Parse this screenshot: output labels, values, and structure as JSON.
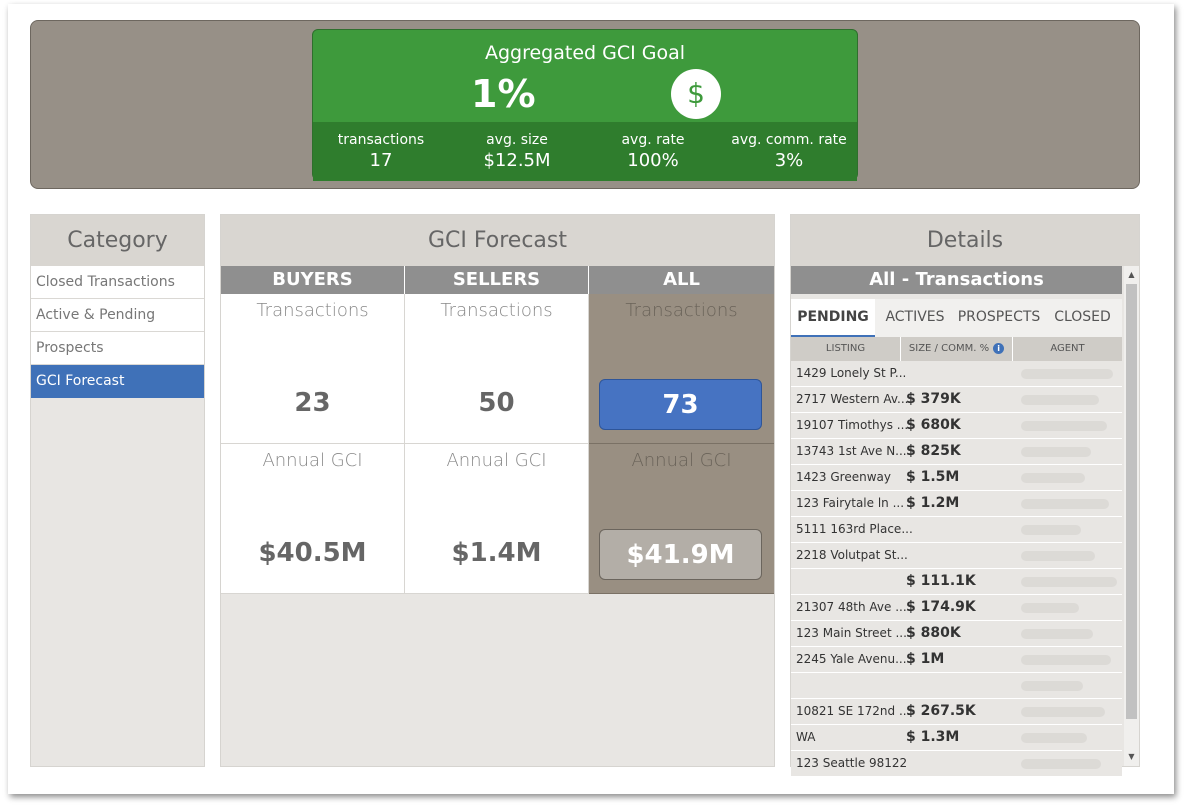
{
  "goal": {
    "title": "Aggregated GCI Goal",
    "percent": "1%",
    "icon": "dollar-icon",
    "icon_glyph": "$",
    "stats": [
      {
        "label": "transactions",
        "value": "17"
      },
      {
        "label": "avg. size",
        "value": "$12.5M"
      },
      {
        "label": "avg. rate",
        "value": "100%"
      },
      {
        "label": "avg. comm. rate",
        "value": "3%"
      }
    ]
  },
  "category": {
    "title": "Category",
    "items": [
      {
        "label": "Closed Transactions"
      },
      {
        "label": "Active & Pending"
      },
      {
        "label": "Prospects"
      },
      {
        "label": "GCI Forecast",
        "active": true
      }
    ]
  },
  "forecast": {
    "title": "GCI Forecast",
    "columns": [
      "BUYERS",
      "SELLERS",
      "ALL"
    ],
    "transactions": {
      "label": "Transactions",
      "buyers": "23",
      "sellers": "50",
      "all": "73"
    },
    "annual_gci": {
      "label": "Annual GCI",
      "buyers": "$40.5M",
      "sellers": "$1.4M",
      "all": "$41.9M"
    }
  },
  "details": {
    "title": "Details",
    "subtitle": "All - Transactions",
    "tabs": [
      "PENDING",
      "ACTIVES",
      "PROSPECTS",
      "CLOSED"
    ],
    "active_tab": "PENDING",
    "columns": [
      "LISTING",
      "SIZE / COMM. %",
      "AGENT"
    ],
    "rows": [
      {
        "listing": "1429 Lonely St P...",
        "size": ""
      },
      {
        "listing": "2717 Western Av...",
        "size": "$ 379K"
      },
      {
        "listing": "19107 Timothys ...",
        "size": "$ 680K"
      },
      {
        "listing": "13743 1st Ave N...",
        "size": "$ 825K"
      },
      {
        "listing": "1423 Greenway",
        "size": "$ 1.5M"
      },
      {
        "listing": "123 Fairytale ln ...",
        "size": "$ 1.2M"
      },
      {
        "listing": "5111 163rd Place...",
        "size": ""
      },
      {
        "listing": "2218 Volutpat St...",
        "size": ""
      },
      {
        "listing": "",
        "size": "$ 111.1K"
      },
      {
        "listing": "21307 48th Ave ...",
        "size": "$ 174.9K"
      },
      {
        "listing": "123 Main Street ...",
        "size": "$ 880K"
      },
      {
        "listing": "2245 Yale Avenu...",
        "size": "$ 1M"
      },
      {
        "listing": "",
        "size": ""
      },
      {
        "listing": "10821 SE 172nd ...",
        "size": "$ 267.5K"
      },
      {
        "listing": "WA",
        "size": "$ 1.3M"
      },
      {
        "listing": "123 Seattle 98122",
        "size": ""
      }
    ]
  },
  "colors": {
    "green": "#3e9a3c",
    "dark_green": "#2f7d2d",
    "blue": "#4673c2",
    "taupe": "#979087"
  }
}
